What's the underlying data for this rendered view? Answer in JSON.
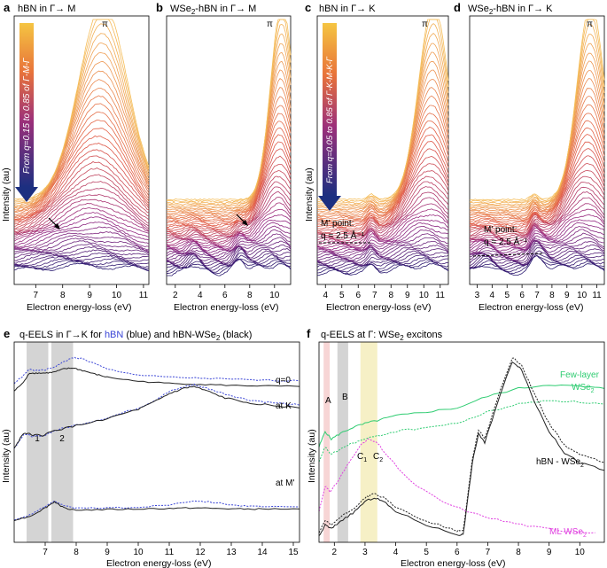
{
  "figure": {
    "panels_top": [
      {
        "id": "a",
        "title_pre": "hBN in Γ",
        "title_arrow": "→",
        "title_post": " M",
        "xlabel": "Electron energy-loss (eV)",
        "ylabel": "Intensity (au)",
        "peak_label": "π",
        "ticks": [
          "7",
          "8",
          "9",
          "10",
          "11"
        ],
        "gradient_label": "From q=0.15 to 0.85 of Γ-M-Γ"
      },
      {
        "id": "b",
        "title_pre": "WSe",
        "title_sub": "2",
        "title_mid": "-hBN in Γ",
        "title_arrow": "→",
        "title_post": " M",
        "xlabel": "Electron energy-loss (eV)",
        "peak_label": "π",
        "ticks": [
          "2",
          "4",
          "6",
          "8",
          "10"
        ]
      },
      {
        "id": "c",
        "title_pre": "hBN in Γ",
        "title_arrow": "→",
        "title_post": " K",
        "xlabel": "Electron energy-loss (eV)",
        "ylabel": "Intensity (au)",
        "peak_label": "π",
        "ticks": [
          "4",
          "5",
          "6",
          "7",
          "8",
          "9",
          "10",
          "11"
        ],
        "gradient_label": "From q=0.05 to 0.85 of Γ-K-M-K-Γ",
        "mpoint_line1": "M' point:",
        "mpoint_line2": "q = 2.5 Å⁻¹"
      },
      {
        "id": "d",
        "title_pre": "WSe",
        "title_sub": "2",
        "title_mid": "-hBN in Γ",
        "title_arrow": "→",
        "title_post": " K",
        "xlabel": "Electron energy-loss (eV)",
        "peak_label": "π",
        "ticks": [
          "3",
          "4",
          "5",
          "6",
          "7",
          "8",
          "9",
          "10",
          "11"
        ],
        "mpoint_line1": "M' point:",
        "mpoint_line2": "q = 2.5 Å⁻¹"
      }
    ],
    "panel_e": {
      "id": "e",
      "title_a": "q-EELS in Γ→K for ",
      "title_hbn": "hBN",
      "title_b": " (blue) and hBN-WSe",
      "title_sub": "2",
      "title_c": " (black)",
      "xlabel": "Electron energy-loss (eV)",
      "ylabel": "Intensity (au)",
      "band1": "1",
      "band2": "2",
      "label_q0": "q=0",
      "label_K": "at K",
      "label_M": "at M'",
      "ticks": [
        "7",
        "8",
        "9",
        "10",
        "11",
        "12",
        "13",
        "14",
        "15"
      ]
    },
    "panel_f": {
      "id": "f",
      "title_a": "q-EELS at Γ: WSe",
      "title_sub": "2",
      "title_b": " excitons",
      "xlabel": "Electron energy-loss (eV)",
      "ylabel": "Intensity (au)",
      "label_A": "A",
      "label_B": "B",
      "label_C1": "C",
      "label_C1_sub": "1",
      "label_C2": "C",
      "label_C2_sub": "2",
      "fewlayer_line1": "Few-layer",
      "fewlayer_line2": "WSe",
      "fewlayer_sub": "2",
      "hbn_label": "hBN - WSe",
      "hbn_sub": "2",
      "ml_label": "ML WSe",
      "ml_sub": "2",
      "ticks": [
        "2",
        "3",
        "4",
        "5",
        "6",
        "7",
        "8",
        "9",
        "10"
      ]
    },
    "colors": {
      "blue": "#3a45d6",
      "black": "#222222",
      "green": "#2ecc71",
      "magenta": "#e040e0",
      "arrow": "#1c2f80",
      "band_gray": "#d4d4d4",
      "band_pink": "#f7d5d5",
      "band_yellow": "#f6f0c6",
      "band_green": "#ddf2d2"
    }
  },
  "chart_data": [
    {
      "type": "line",
      "panel": "a",
      "title": "hBN in Γ→M",
      "xlabel": "Electron energy-loss (eV)",
      "ylabel": "Intensity (au)",
      "xlim": [
        6.2,
        11.2
      ],
      "n_curves": 45,
      "q_range": [
        0.15,
        0.85
      ],
      "peak_label": "π",
      "peak_x": 9.5
    },
    {
      "type": "line",
      "panel": "b",
      "title": "WSe2-hBN in Γ→M",
      "xlabel": "Electron energy-loss (eV)",
      "xlim": [
        1.3,
        11.3
      ],
      "n_curves": 45,
      "peak_label": "π",
      "peak_x": 10.6
    },
    {
      "type": "line",
      "panel": "c",
      "title": "hBN in Γ→K",
      "xlabel": "Electron energy-loss (eV)",
      "ylabel": "Intensity (au)",
      "xlim": [
        3.5,
        11.5
      ],
      "n_curves": 45,
      "q_range": [
        0.05,
        0.85
      ],
      "peak_label": "π",
      "peak_x": 10.6,
      "annotation": "M' point: q = 2.5 Å⁻¹"
    },
    {
      "type": "line",
      "panel": "d",
      "title": "WSe2-hBN in Γ→K",
      "xlabel": "Electron energy-loss (eV)",
      "xlim": [
        2.5,
        11.5
      ],
      "n_curves": 45,
      "peak_label": "π",
      "peak_x": 10.6,
      "annotation": "M' point: q = 2.5 Å⁻¹"
    },
    {
      "type": "line",
      "panel": "e",
      "title": "q-EELS in Γ→K for hBN (blue) and hBN-WSe2 (black)",
      "xlabel": "Electron energy-loss (eV)",
      "ylabel": "Intensity (au)",
      "xlim": [
        6,
        15.2
      ],
      "bands": [
        {
          "label": "1",
          "x": [
            6.4,
            7.1
          ]
        },
        {
          "label": "2",
          "x": [
            7.2,
            7.9
          ]
        }
      ],
      "groups": [
        {
          "name": "q=0",
          "series": [
            {
              "name": "hBN",
              "style": "dotted blue",
              "x": [
                6,
                6.3,
                6.5,
                6.7,
                7,
                7.3,
                7.6,
                7.9,
                8.2,
                8.6,
                9,
                10,
                11,
                12,
                13,
                14,
                15.2
              ],
              "y": [
                0.3,
                0.45,
                0.58,
                0.55,
                0.56,
                0.62,
                0.72,
                0.8,
                0.78,
                0.68,
                0.58,
                0.46,
                0.42,
                0.4,
                0.38,
                0.36,
                0.35
              ]
            },
            {
              "name": "hBN-WSe2",
              "style": "solid black",
              "x": [
                6,
                6.3,
                6.5,
                6.7,
                7,
                7.3,
                7.6,
                7.9,
                8.2,
                8.6,
                9,
                10,
                11,
                12,
                13,
                14,
                15.2
              ],
              "y": [
                0.15,
                0.32,
                0.5,
                0.5,
                0.5,
                0.52,
                0.58,
                0.6,
                0.55,
                0.48,
                0.42,
                0.34,
                0.3,
                0.28,
                0.26,
                0.25,
                0.24
              ]
            }
          ]
        },
        {
          "name": "at K",
          "series": [
            {
              "name": "hBN",
              "style": "dotted blue",
              "x": [
                6,
                6.3,
                6.6,
                6.9,
                7.3,
                8,
                9,
                10,
                10.5,
                11,
                11.5,
                11.8,
                12.2,
                12.8,
                13.5,
                14.2,
                15.2
              ],
              "y": [
                0.05,
                0.25,
                0.22,
                0.22,
                0.3,
                0.38,
                0.48,
                0.62,
                0.72,
                0.85,
                0.92,
                0.95,
                0.9,
                0.82,
                0.74,
                0.7,
                0.66
              ]
            },
            {
              "name": "hBN-WSe2",
              "style": "solid black",
              "x": [
                6,
                6.3,
                6.6,
                6.9,
                7.3,
                8,
                9,
                10,
                10.5,
                11,
                11.5,
                11.8,
                12.2,
                12.8,
                13.5,
                14.2,
                15.2
              ],
              "y": [
                0.05,
                0.27,
                0.24,
                0.23,
                0.3,
                0.37,
                0.47,
                0.6,
                0.7,
                0.82,
                0.9,
                0.92,
                0.86,
                0.76,
                0.7,
                0.66,
                0.62
              ]
            }
          ]
        },
        {
          "name": "at M'",
          "series": [
            {
              "name": "hBN",
              "style": "dotted blue",
              "x": [
                6,
                6.5,
                7,
                7.3,
                7.6,
                8,
                9,
                10,
                11,
                11.8,
                12.5,
                13.3,
                14,
                15.2
              ],
              "y": [
                0.05,
                0.15,
                0.3,
                0.42,
                0.32,
                0.27,
                0.28,
                0.29,
                0.34,
                0.42,
                0.38,
                0.32,
                0.3,
                0.3
              ]
            },
            {
              "name": "hBN-WSe2",
              "style": "solid black",
              "x": [
                6,
                6.5,
                7,
                7.3,
                7.6,
                8,
                9,
                10,
                11,
                11.8,
                12.5,
                13.3,
                14,
                15.2
              ],
              "y": [
                0.05,
                0.12,
                0.28,
                0.4,
                0.28,
                0.24,
                0.25,
                0.26,
                0.27,
                0.28,
                0.27,
                0.26,
                0.26,
                0.26
              ]
            }
          ]
        }
      ]
    },
    {
      "type": "line",
      "panel": "f",
      "title": "q-EELS at Γ: WSe2 excitons",
      "xlabel": "Electron energy-loss (eV)",
      "ylabel": "Intensity (au)",
      "xlim": [
        1.5,
        10.8
      ],
      "bands": [
        {
          "label": "A",
          "x": [
            1.65,
            1.85
          ]
        },
        {
          "label": "B",
          "x": [
            2.1,
            2.45
          ]
        },
        {
          "label": "C",
          "x": [
            2.85,
            3.4
          ]
        }
      ],
      "series": [
        {
          "name": "Few-layer WSe2 (solid)",
          "style": "solid green",
          "x": [
            1.5,
            1.7,
            1.9,
            2.2,
            2.6,
            3,
            3.5,
            4,
            5,
            6,
            7,
            8,
            9,
            10,
            10.8
          ],
          "y": [
            0.48,
            0.56,
            0.52,
            0.55,
            0.58,
            0.6,
            0.62,
            0.64,
            0.66,
            0.68,
            0.74,
            0.78,
            0.8,
            0.79,
            0.78
          ]
        },
        {
          "name": "Few-layer WSe2 (dotted)",
          "style": "dotted green",
          "x": [
            1.5,
            1.7,
            1.9,
            2.2,
            2.6,
            3,
            3.5,
            4,
            5,
            6,
            7,
            8,
            9,
            10,
            10.8
          ],
          "y": [
            0.4,
            0.48,
            0.44,
            0.47,
            0.5,
            0.52,
            0.54,
            0.56,
            0.58,
            0.6,
            0.66,
            0.7,
            0.72,
            0.71,
            0.7
          ]
        },
        {
          "name": "ML WSe2",
          "style": "dotted magenta",
          "x": [
            1.5,
            1.7,
            1.85,
            2.1,
            2.4,
            2.8,
            3.1,
            3.4,
            3.8,
            4.5,
            5.5,
            6.5,
            7.5,
            8.5,
            9.5,
            10.5
          ],
          "y": [
            0.15,
            0.28,
            0.25,
            0.3,
            0.38,
            0.48,
            0.52,
            0.5,
            0.42,
            0.3,
            0.2,
            0.14,
            0.1,
            0.07,
            0.05,
            0.04
          ]
        },
        {
          "name": "hBN - WSe2 (solid)",
          "style": "solid black",
          "x": [
            1.5,
            1.7,
            1.9,
            2.2,
            2.6,
            3,
            3.3,
            3.6,
            4,
            5,
            6,
            6.2,
            6.5,
            6.7,
            6.9,
            7.3,
            7.8,
            8.1,
            8.5,
            9,
            9.5,
            10,
            10.8
          ],
          "y": [
            0.02,
            0.08,
            0.06,
            0.1,
            0.14,
            0.2,
            0.22,
            0.2,
            0.15,
            0.08,
            0.03,
            0.03,
            0.4,
            0.55,
            0.5,
            0.7,
            0.92,
            0.88,
            0.72,
            0.56,
            0.45,
            0.4,
            0.36
          ]
        },
        {
          "name": "hBN - WSe2 (dotted)",
          "style": "dotted black",
          "x": [
            1.5,
            1.7,
            1.9,
            2.2,
            2.6,
            3,
            3.3,
            3.6,
            4,
            5,
            6,
            6.2,
            6.5,
            6.7,
            6.9,
            7.3,
            7.8,
            8.1,
            8.5,
            9,
            9.5,
            10,
            10.8
          ],
          "y": [
            0.04,
            0.1,
            0.08,
            0.12,
            0.16,
            0.22,
            0.24,
            0.22,
            0.17,
            0.1,
            0.05,
            0.05,
            0.42,
            0.57,
            0.52,
            0.72,
            0.94,
            0.9,
            0.76,
            0.6,
            0.49,
            0.44,
            0.4
          ]
        }
      ]
    }
  ]
}
